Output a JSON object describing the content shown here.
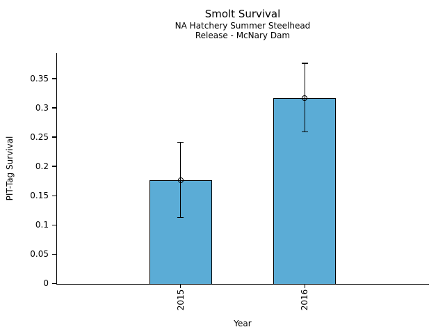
{
  "figure": {
    "background_color": "#ffffff",
    "title": "Smolt Survival",
    "subtitle_line1": "NA Hatchery Summer Steelhead",
    "subtitle_line2": "Release - McNary Dam",
    "xlabel": "Year",
    "ylabel": "PIT-Tag Survival"
  },
  "chart_data": {
    "type": "bar",
    "title": "Smolt Survival",
    "subtitle": [
      "NA Hatchery Summer Steelhead",
      "Release - McNary Dam"
    ],
    "xlabel": "Year",
    "ylabel": "PIT-Tag Survival",
    "categories": [
      "2015",
      "2016"
    ],
    "values": [
      0.176,
      0.317
    ],
    "error_low": [
      0.113,
      0.259
    ],
    "error_high": [
      0.241,
      0.376
    ],
    "yticks": [
      0,
      0.05,
      0.1,
      0.15,
      0.2,
      0.25,
      0.3,
      0.35
    ],
    "ytick_labels": [
      "0",
      "0.05",
      "0.1",
      "0.15",
      "0.2",
      "0.25",
      "0.3",
      "0.35"
    ],
    "ylim": [
      0,
      0.394
    ],
    "xtick_rotation_deg": 90,
    "bar_color": "#5BACD6",
    "edge_color": "#000000",
    "marker": "open-circle",
    "grid": false,
    "legend_position": "none",
    "spines": [
      "left",
      "bottom"
    ]
  }
}
